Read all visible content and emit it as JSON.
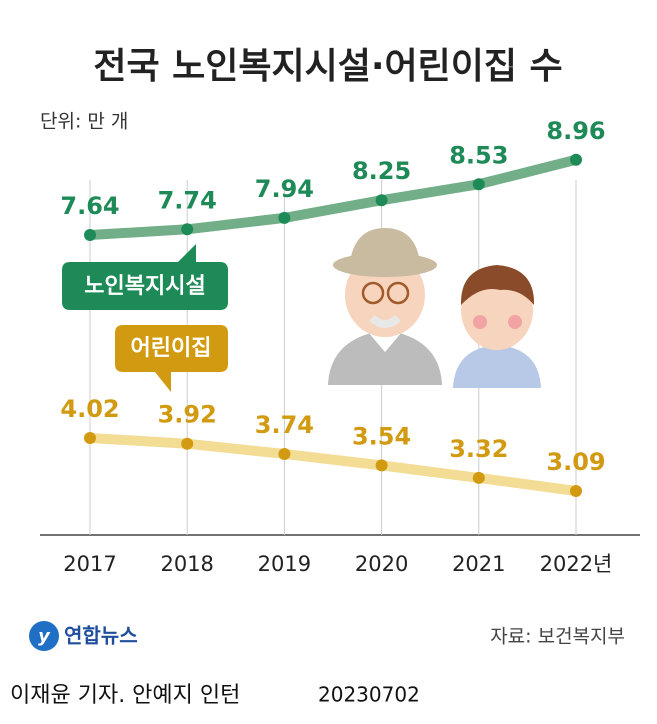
{
  "chart_data": {
    "type": "line",
    "title": "전국 노인복지시설·어린이집 수",
    "subtitle": "단위: 만 개",
    "categories": [
      "2017",
      "2018",
      "2019",
      "2020",
      "2021",
      "2022년"
    ],
    "series": [
      {
        "name": "노인복지시설",
        "color": "#1e8a57",
        "line_color": "#72ae88",
        "values": [
          7.64,
          7.74,
          7.94,
          8.25,
          8.53,
          8.96
        ]
      },
      {
        "name": "어린이집",
        "color": "#d19a10",
        "line_color": "#f3dc93",
        "values": [
          4.02,
          3.92,
          3.74,
          3.54,
          3.32,
          3.09
        ]
      }
    ],
    "source": "자료: 보건복지부",
    "logo": "연합뉴스",
    "byline": "이재윤 기자. 안예지 인턴",
    "date": "20230702"
  }
}
